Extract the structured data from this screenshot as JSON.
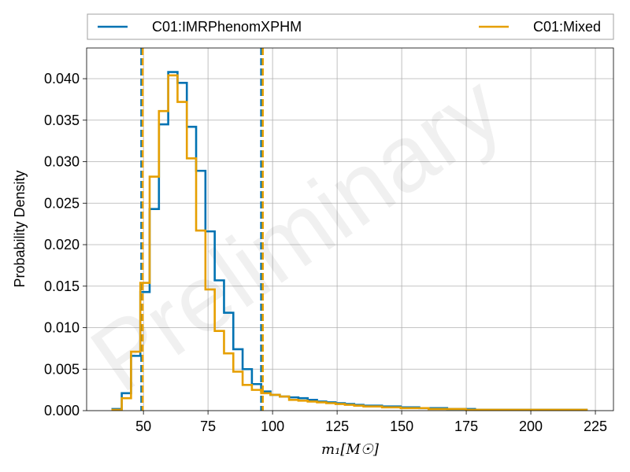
{
  "chart_data": {
    "type": "histogram",
    "watermark": "Preliminary",
    "xlabel": "m₁[M☉]",
    "ylabel": "Probability Density",
    "xlim": [
      28,
      232
    ],
    "ylim": [
      0,
      0.0437
    ],
    "xticks": [
      50,
      75,
      100,
      125,
      150,
      175,
      200,
      225
    ],
    "xtick_labels": [
      "50",
      "75",
      "100",
      "125",
      "150",
      "175",
      "200",
      "225"
    ],
    "yticks": [
      0,
      0.005,
      0.01,
      0.015,
      0.02,
      0.025,
      0.03,
      0.035,
      0.04
    ],
    "ytick_labels": [
      "0.000",
      "0.005",
      "0.010",
      "0.015",
      "0.020",
      "0.025",
      "0.030",
      "0.035",
      "0.040"
    ],
    "grid": true,
    "legend": {
      "placement": "top",
      "columns": 2
    },
    "series": [
      {
        "name": "C01:IMRPhenomXPHM",
        "color": "#0072b2",
        "bin_edges": [
          38.0,
          41.6,
          45.2,
          48.8,
          52.4,
          56.0,
          59.6,
          63.2,
          66.8,
          70.4,
          74.0,
          77.6,
          81.2,
          84.8,
          88.4,
          92.0,
          95.6,
          99.2,
          102.8,
          106.4,
          110.0,
          113.6,
          117.2,
          120.8,
          124.4,
          128.0,
          131.6,
          135.2,
          138.8,
          142.4,
          146.0,
          149.6,
          153.2,
          156.8,
          160.4,
          164.0,
          167.6,
          171.2,
          174.8,
          178.4,
          182.0,
          185.6,
          189.2,
          192.8,
          196.4,
          200.0,
          203.6,
          207.2,
          210.8,
          214.4,
          218.0,
          221.6
        ],
        "density": [
          0.0002,
          0.0021,
          0.0066,
          0.0143,
          0.0243,
          0.0345,
          0.0408,
          0.0395,
          0.0342,
          0.0289,
          0.0216,
          0.0157,
          0.0118,
          0.0074,
          0.005,
          0.0032,
          0.0023,
          0.0019,
          0.0017,
          0.0016,
          0.0015,
          0.0013,
          0.0011,
          0.001,
          0.0009,
          0.0008,
          0.0007,
          0.0006,
          0.0006,
          0.0005,
          0.0005,
          0.0004,
          0.0004,
          0.0003,
          0.0003,
          0.0003,
          0.0002,
          0.0002,
          0.0002,
          0.0001,
          0.0001,
          0.0001,
          0.0001,
          0.0001,
          0.0001,
          0.0001,
          0.0001,
          0.0001,
          0.0001,
          0.0001,
          0.0001
        ],
        "interval": [
          49.2,
          95.6
        ]
      },
      {
        "name": "C01:Mixed",
        "color": "#e69f00",
        "bin_edges": [
          38.0,
          41.6,
          45.2,
          48.8,
          52.4,
          56.0,
          59.6,
          63.2,
          66.8,
          70.4,
          74.0,
          77.6,
          81.2,
          84.8,
          88.4,
          92.0,
          95.6,
          99.2,
          102.8,
          106.4,
          110.0,
          113.6,
          117.2,
          120.8,
          124.4,
          128.0,
          131.6,
          135.2,
          138.8,
          142.4,
          146.0,
          149.6,
          153.2,
          156.8,
          160.4,
          164.0,
          167.6,
          171.2,
          174.8,
          178.4,
          182.0,
          185.6,
          189.2,
          192.8,
          196.4,
          200.0,
          203.6,
          207.2,
          210.8,
          214.4,
          218.0,
          221.6
        ],
        "density": [
          0.0001,
          0.0015,
          0.0071,
          0.0154,
          0.0282,
          0.0361,
          0.0404,
          0.0372,
          0.0304,
          0.0217,
          0.0146,
          0.0096,
          0.0069,
          0.0047,
          0.0031,
          0.0025,
          0.0021,
          0.0019,
          0.0017,
          0.0013,
          0.0012,
          0.0011,
          0.001,
          0.0009,
          0.0008,
          0.0007,
          0.0006,
          0.0005,
          0.0005,
          0.0004,
          0.0004,
          0.0003,
          0.0003,
          0.0003,
          0.0002,
          0.0002,
          0.0002,
          0.0002,
          0.0001,
          0.0001,
          0.0001,
          0.0001,
          0.0001,
          0.0001,
          0.0001,
          0.0001,
          0.0001,
          0.0001,
          0.0001,
          0.0001,
          0.0001
        ],
        "interval": [
          49.7,
          96.2
        ]
      }
    ]
  }
}
